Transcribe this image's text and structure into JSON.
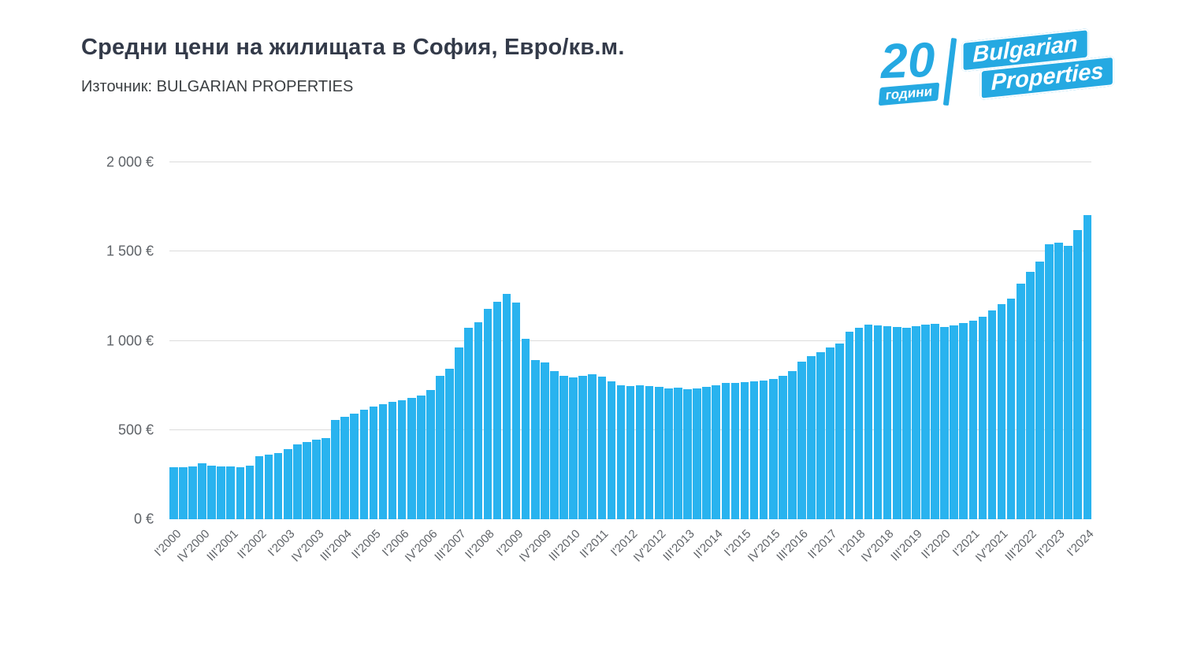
{
  "header": {
    "title": "Средни цени на жилищата в София, Евро/кв.м.",
    "source": "Източник: BULGARIAN PROPERTIES"
  },
  "logo": {
    "years_number": "20",
    "years_word": "години",
    "brand_line1": "Bulgarian",
    "brand_line2": "Properties"
  },
  "colors": {
    "bar": "#29b3ef",
    "title": "#333a49",
    "axis_text": "#5f6368",
    "grid": "#dcdcdc",
    "logo_blue": "#25a9e2"
  },
  "chart_data": {
    "type": "bar",
    "title": "Средни цени на жилищата в София, Евро/кв.м.",
    "source": "Източник: BULGARIAN PROPERTIES",
    "xlabel": "",
    "ylabel": "Евро/кв.м.",
    "ylim": [
      0,
      2000
    ],
    "grid": true,
    "legend": false,
    "y_ticks": [
      {
        "value": 0,
        "label": "0 €"
      },
      {
        "value": 500,
        "label": "500 €"
      },
      {
        "value": 1000,
        "label": "1 000 €"
      },
      {
        "value": 1500,
        "label": "1 500 €"
      },
      {
        "value": 2000,
        "label": "2 000 €"
      }
    ],
    "x_tick_step": 3,
    "x_tick_labels": [
      "I'2000",
      "IV'2000",
      "III'2001",
      "II'2002",
      "I'2003",
      "IV'2003",
      "III'2004",
      "II'2005",
      "I'2006",
      "IV'2006",
      "III'2007",
      "II'2008",
      "I'2009",
      "IV'2009",
      "III'2010",
      "II'2011",
      "I'2012",
      "IV'2012",
      "III'2013",
      "II'2014",
      "I'2015",
      "IV'2015",
      "III'2016",
      "II'2017",
      "I'2018",
      "IV'2018",
      "III'2019",
      "II'2020",
      "I'2021",
      "IV'2021",
      "III'2022",
      "II'2023",
      "I'2024"
    ],
    "values": [
      290,
      292,
      298,
      312,
      302,
      298,
      295,
      292,
      302,
      352,
      362,
      372,
      395,
      418,
      432,
      445,
      455,
      555,
      572,
      592,
      612,
      632,
      645,
      658,
      668,
      678,
      692,
      722,
      805,
      845,
      962,
      1072,
      1105,
      1178,
      1218,
      1262,
      1215,
      1012,
      892,
      878,
      832,
      805,
      795,
      802,
      812,
      798,
      772,
      752,
      748,
      752,
      748,
      742,
      732,
      738,
      728,
      732,
      742,
      752,
      762,
      762,
      768,
      772,
      778,
      788,
      802,
      828,
      882,
      912,
      935,
      962,
      985,
      1052,
      1075,
      1092,
      1085,
      1082,
      1078,
      1075,
      1082,
      1092,
      1095,
      1078,
      1085,
      1098,
      1112,
      1135,
      1168,
      1205,
      1238,
      1318,
      1388,
      1442,
      1540,
      1548,
      1530,
      1620,
      1705
    ]
  }
}
